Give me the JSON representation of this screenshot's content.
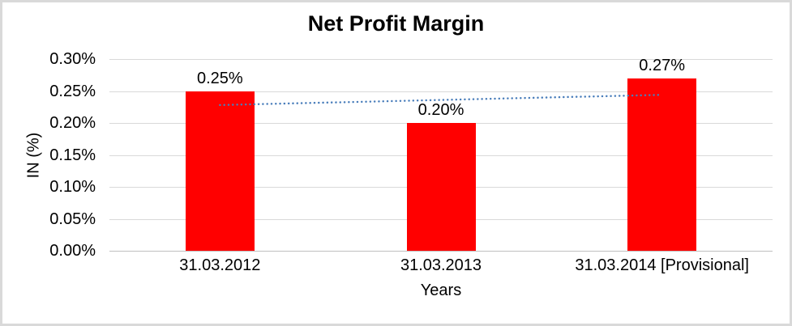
{
  "frame": {
    "background": "#FFFFFF",
    "border_color": "#D9D9D9"
  },
  "chart_data": {
    "type": "bar",
    "title": "Net Profit Margin",
    "xlabel": "Years",
    "ylabel": "IN (%)",
    "categories": [
      "31.03.2012",
      "31.03.2013",
      "31.03.2014 [Provisional]"
    ],
    "values": [
      0.25,
      0.2,
      0.27
    ],
    "data_labels": [
      "0.25%",
      "0.20%",
      "0.27%"
    ],
    "unit": "%",
    "ylim": [
      0,
      0.3
    ],
    "yticks": [
      {
        "value": 0.0,
        "label": "0.00%"
      },
      {
        "value": 0.05,
        "label": "0.05%"
      },
      {
        "value": 0.1,
        "label": "0.10%"
      },
      {
        "value": 0.15,
        "label": "0.15%"
      },
      {
        "value": 0.2,
        "label": "0.20%"
      },
      {
        "value": 0.25,
        "label": "0.25%"
      },
      {
        "value": 0.3,
        "label": "0.30%"
      }
    ],
    "grid": true,
    "legend": "none",
    "bar_color": "#FF0000",
    "gridline_color": "#D9D9D9",
    "axis_line_color": "#BFBFBF",
    "text_color": "#000000",
    "trendline": {
      "type": "linear",
      "style": "dotted",
      "color": "#4A7EBB",
      "start_value": 0.228,
      "end_value": 0.244
    }
  }
}
